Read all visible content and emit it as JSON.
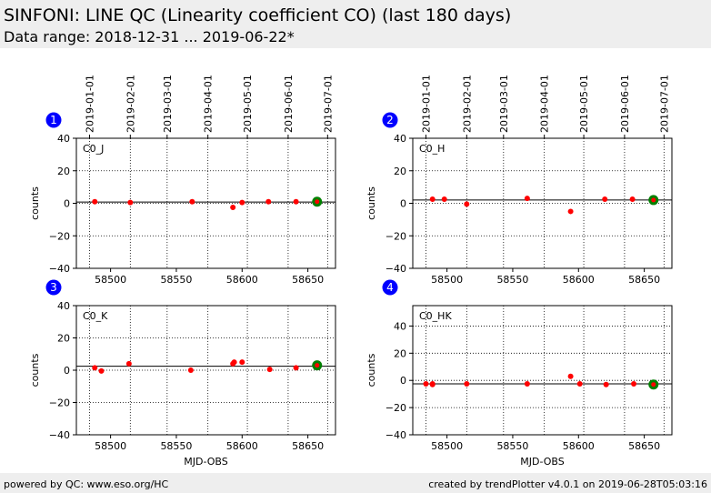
{
  "header": {
    "title": "SINFONI: LINE QC (Linearity coefficient CO) (last 180 days)",
    "subtitle": "Data range: 2018-12-31 ... 2019-06-22*"
  },
  "footer": {
    "left": "powered by QC: www.eso.org/HC",
    "right": "created by trendPlotter v4.0.1 on 2019-06-28T05:03:16"
  },
  "colors": {
    "point": "#ff0000",
    "latest": "#008000",
    "badge": "#0000ff"
  },
  "chart_data": [
    {
      "type": "scatter",
      "badge": "1",
      "label": "C0_J",
      "ylabel": "counts",
      "xlabel": "",
      "xlim": [
        58474,
        58671
      ],
      "ylim": [
        -40,
        40
      ],
      "yticks": [
        -40,
        -20,
        0,
        20,
        40
      ],
      "xticks": [
        58500,
        58550,
        58600,
        58650
      ],
      "top_dates": [
        "2019-01-01",
        "2019-02-01",
        "2019-03-01",
        "2019-04-01",
        "2019-05-01",
        "2019-06-01",
        "2019-07-01"
      ],
      "reference_y": 0.8,
      "points": [
        [
          58488,
          1.0
        ],
        [
          58515,
          0.5
        ],
        [
          58562,
          1.0
        ],
        [
          58593,
          -2.5
        ],
        [
          58600,
          0.5
        ],
        [
          58620,
          1.0
        ],
        [
          58641,
          1.0
        ]
      ],
      "latest": [
        58657,
        1.0
      ]
    },
    {
      "type": "scatter",
      "badge": "2",
      "label": "C0_H",
      "ylabel": "counts",
      "xlabel": "",
      "xlim": [
        58474,
        58671
      ],
      "ylim": [
        -40,
        40
      ],
      "yticks": [
        -40,
        -20,
        0,
        20,
        40
      ],
      "xticks": [
        58500,
        58550,
        58600,
        58650
      ],
      "top_dates": [
        "2019-01-01",
        "2019-02-01",
        "2019-03-01",
        "2019-04-01",
        "2019-05-01",
        "2019-06-01",
        "2019-07-01"
      ],
      "reference_y": 2.0,
      "points": [
        [
          58489,
          2.5
        ],
        [
          58498,
          2.5
        ],
        [
          58515,
          -0.5
        ],
        [
          58561,
          3.0
        ],
        [
          58594,
          -5.0
        ],
        [
          58620,
          2.5
        ],
        [
          58641,
          2.5
        ]
      ],
      "latest": [
        58657,
        2.0
      ]
    },
    {
      "type": "scatter",
      "badge": "3",
      "label": "C0_K",
      "ylabel": "counts",
      "xlabel": "MJD-OBS",
      "xlim": [
        58474,
        58671
      ],
      "ylim": [
        -40,
        40
      ],
      "yticks": [
        -40,
        -20,
        0,
        20,
        40
      ],
      "xticks": [
        58500,
        58550,
        58600,
        58650
      ],
      "top_dates": [],
      "reference_y": 2.5,
      "points": [
        [
          58488,
          1.5
        ],
        [
          58493,
          -0.5
        ],
        [
          58514,
          4.0
        ],
        [
          58561,
          0.0
        ],
        [
          58593,
          4.0
        ],
        [
          58594,
          5.0
        ],
        [
          58600,
          5.0
        ],
        [
          58621,
          0.5
        ],
        [
          58641,
          1.5
        ]
      ],
      "latest": [
        58657,
        3.0
      ]
    },
    {
      "type": "scatter",
      "badge": "4",
      "label": "C0_HK",
      "ylabel": "counts",
      "xlabel": "MJD-OBS",
      "xlim": [
        58474,
        58671
      ],
      "ylim": [
        -40,
        55
      ],
      "yticks": [
        -40,
        -20,
        0,
        20,
        40
      ],
      "xticks": [
        58500,
        58550,
        58600,
        58650
      ],
      "top_dates": [],
      "reference_y": -2.5,
      "points": [
        [
          58484,
          -2.5
        ],
        [
          58489,
          -2.5
        ],
        [
          58489,
          -3.0
        ],
        [
          58515,
          -2.5
        ],
        [
          58561,
          -2.5
        ],
        [
          58594,
          3.0
        ],
        [
          58601,
          -2.5
        ],
        [
          58621,
          -3.0
        ],
        [
          58642,
          -2.5
        ]
      ],
      "latest": [
        58657,
        -3.0
      ]
    }
  ]
}
